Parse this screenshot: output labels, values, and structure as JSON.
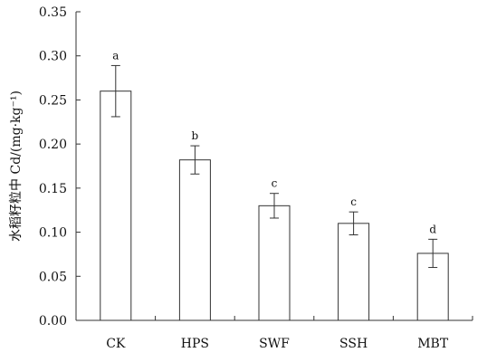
{
  "chart_data": {
    "type": "bar",
    "ylabel": "水稻籽粒中 Cd/(mg·kg⁻¹)",
    "categories": [
      "CK",
      "HPS",
      "SWF",
      "SSH",
      "MBT"
    ],
    "series": [
      {
        "values": [
          0.26,
          0.182,
          0.13,
          0.11,
          0.076
        ],
        "errors": [
          0.029,
          0.016,
          0.014,
          0.013,
          0.016
        ],
        "significance": [
          "a",
          "b",
          "c",
          "c",
          "d"
        ]
      }
    ],
    "ylim": [
      0,
      0.35
    ],
    "yticks": [
      "0.00",
      "0.05",
      "0.10",
      "0.15",
      "0.20",
      "0.25",
      "0.30",
      "0.35"
    ],
    "grid": false,
    "legend": "none",
    "bar_fill": "#ffffff",
    "bar_stroke": "#333333"
  }
}
